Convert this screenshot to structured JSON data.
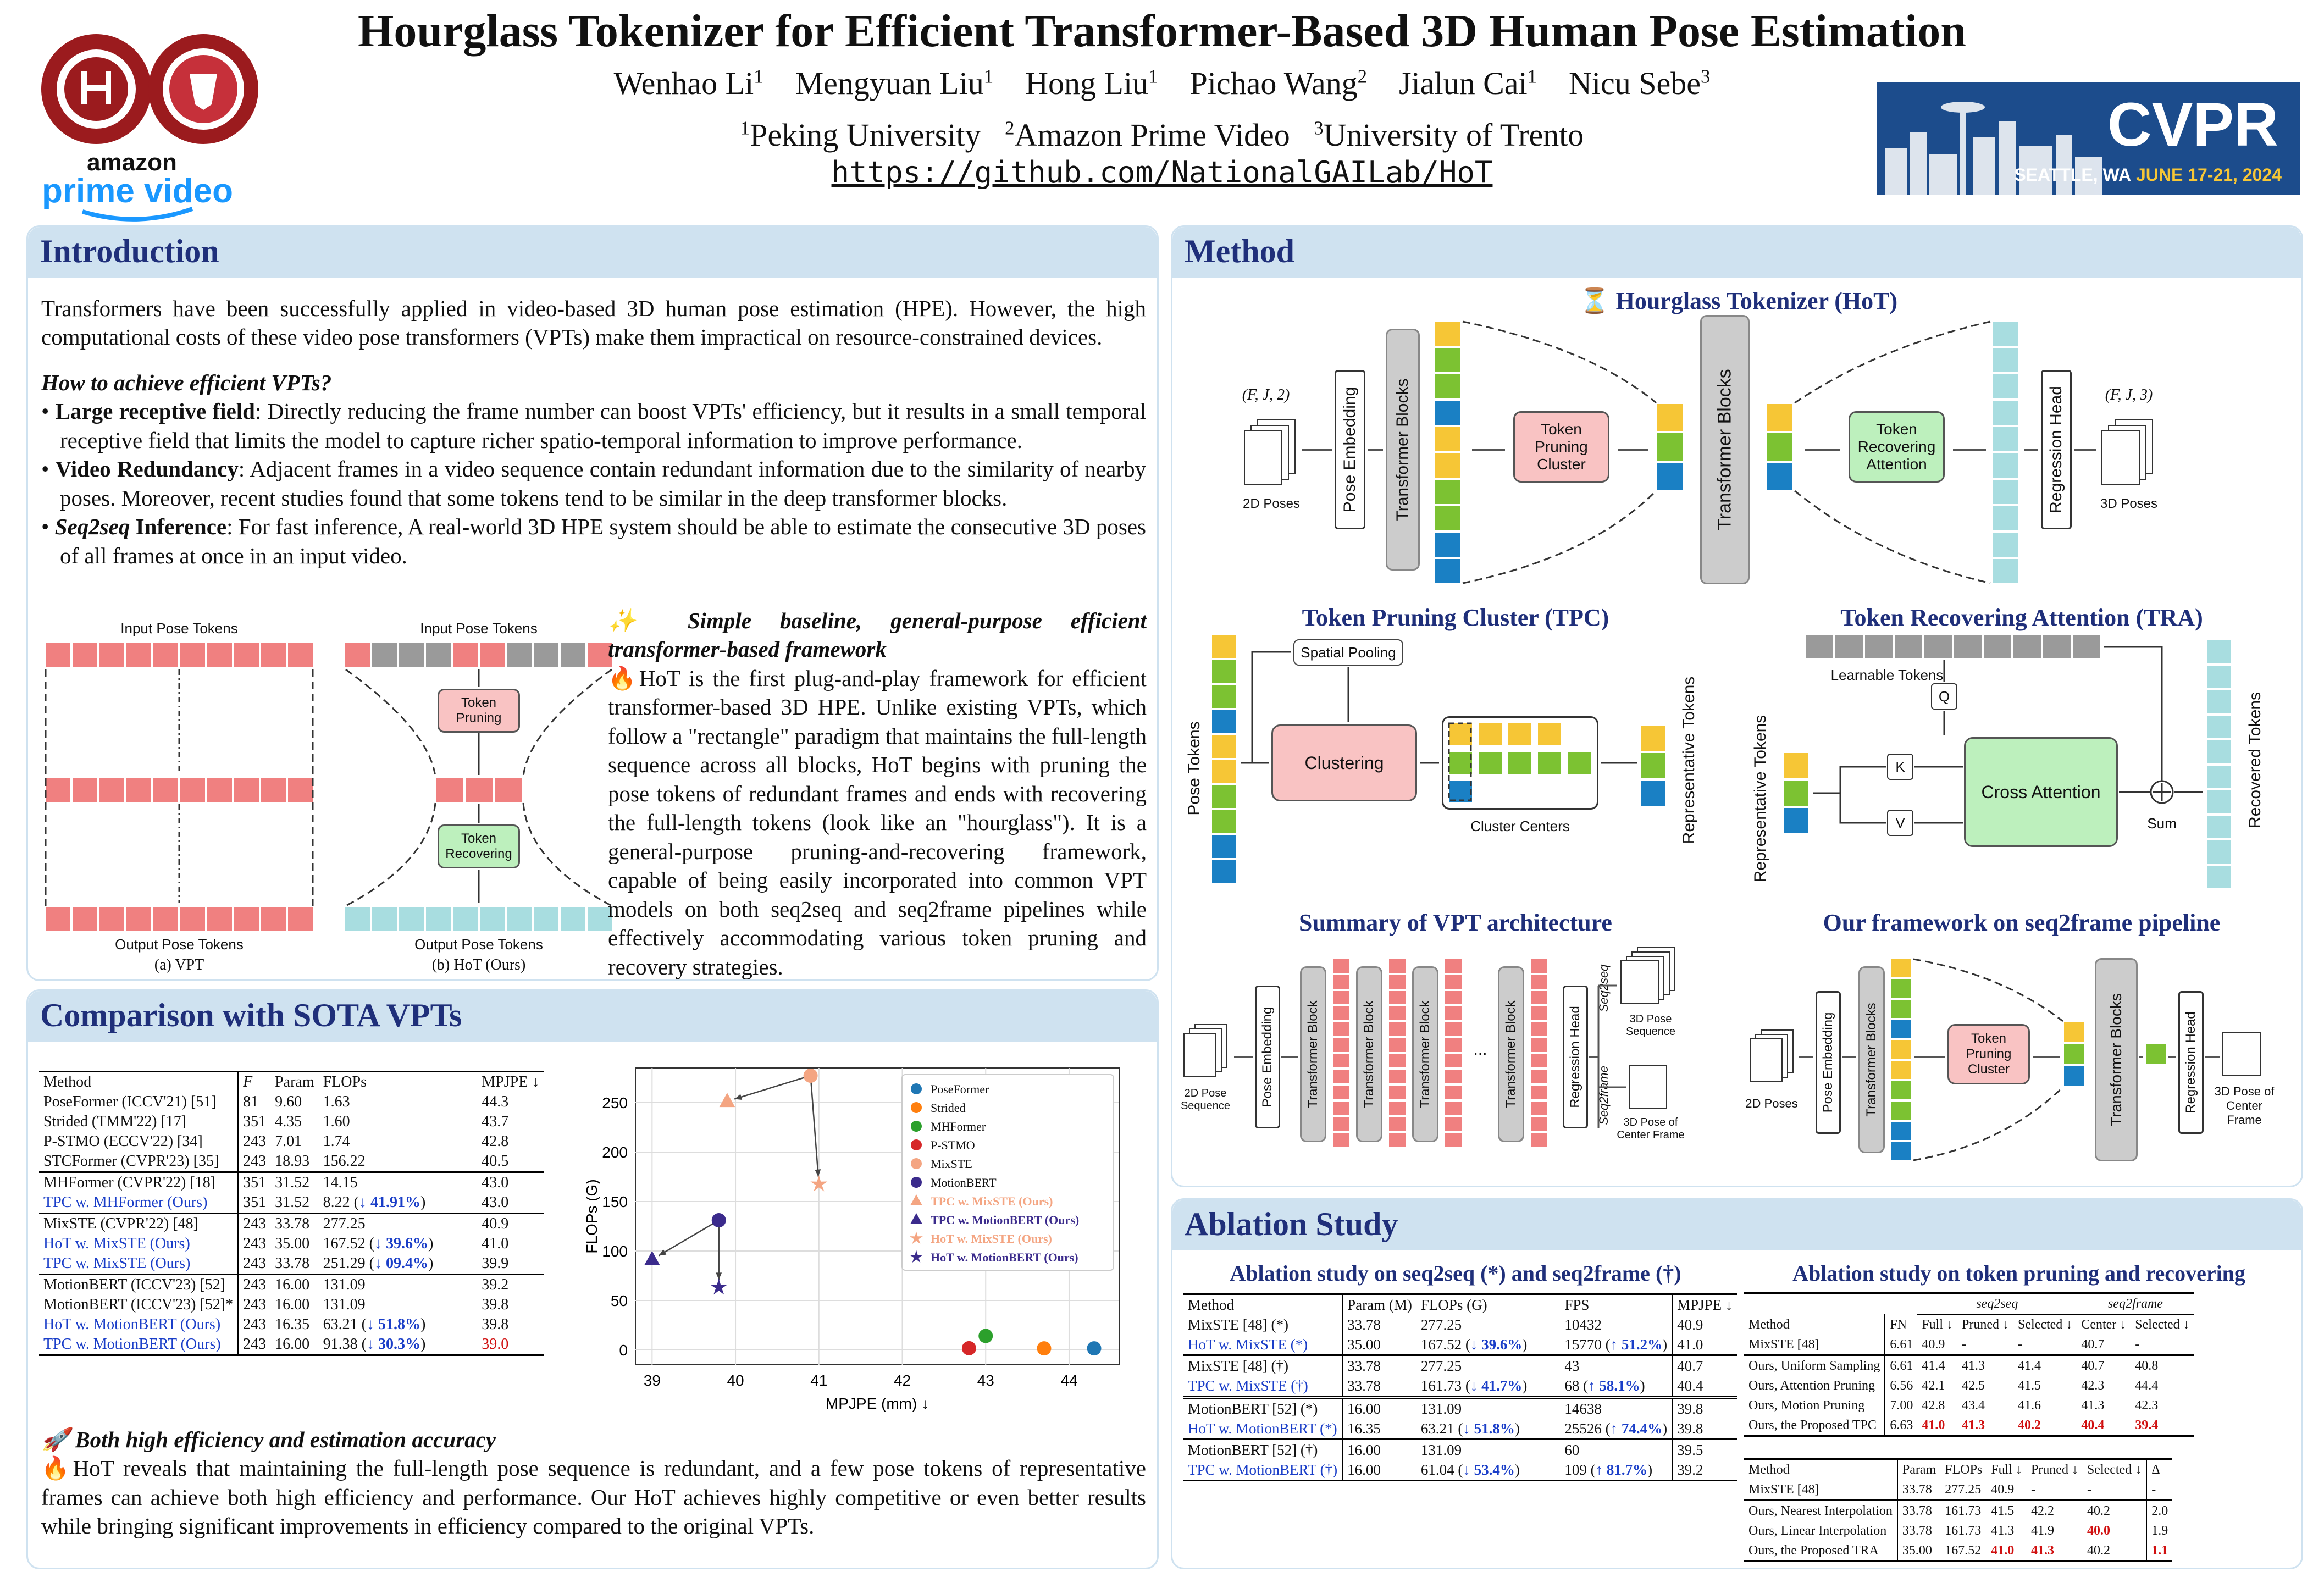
{
  "title": "Hourglass Tokenizer for Efficient Transformer-Based 3D Human Pose Estimation",
  "authors": [
    "Wenhao Li",
    "Mengyuan Liu",
    "Hong Liu",
    "Pichao Wang",
    "Jialun Cai",
    "Nicu Sebe"
  ],
  "author_sup": [
    "1",
    "1",
    "1",
    "2",
    "1",
    "3"
  ],
  "affiliations": [
    "Peking University",
    "Amazon Prime Video",
    "University of Trento"
  ],
  "url": "https://github.com/NationalGAILab/HoT",
  "logos": {
    "amazon": "amazon",
    "prime": "prime video",
    "cvpr": "CVPR",
    "cvpr_place": "SEATTLE, WA",
    "cvpr_date": "JUNE 17-21, 2024"
  },
  "intro": {
    "heading": "Introduction",
    "p1": "Transformers have been successfully applied in video-based 3D human pose estimation (HPE). However, the high computational costs of these video pose transformers (VPTs) make them impractical on resource-constrained devices.",
    "q": "How to achieve efficient VPTs?",
    "b1_head": "Large receptive field",
    "b1": ": Directly reducing the frame number can boost VPTs' efficiency, but it results in a small temporal receptive field that limits the model to capture richer spatio-temporal information to improve performance.",
    "b2_head": "Video Redundancy",
    "b2": ": Adjacent frames in a video sequence contain redundant information due to the similarity of nearby poses. Moreover, recent studies found that some tokens tend to be similar in the deep transformer blocks.",
    "b3_head": "Seq2seq",
    "b3_head2": " Inference",
    "b3": ": For fast inference, A real-world 3D HPE system should be able to estimate the consecutive 3D poses of all frames at once in an input video.",
    "fig_in": "Input Pose Tokens",
    "fig_out": "Output Pose Tokens",
    "fig_prune": "Token Pruning",
    "fig_recover": "Token Recovering",
    "cap_a": "(a) VPT",
    "cap_b": "(b) HoT (Ours)",
    "simple_head": "Simple baseline, general-purpose efficient transformer-based framework",
    "simple_text": "HoT is the first plug-and-play framework for efficient transformer-based 3D HPE. Unlike existing VPTs, which follow a \"rectangle\" paradigm that maintains the full-length sequence across all blocks, HoT begins with pruning the pose tokens of redundant frames and ends with recovering the full-length tokens (look like an \"hourglass\"). It is a general-purpose pruning-and-recovering framework, capable of being easily incorporated into common VPT models on both seq2seq and seq2frame pipelines while effectively accommodating various token pruning and recovery strategies."
  },
  "comparison": {
    "heading": "Comparison with SOTA VPTs",
    "cols": [
      "Method",
      "F",
      "Param",
      "FLOPs",
      "MPJPE ↓"
    ],
    "groups": [
      [
        [
          "PoseFormer (ICCV'21) [51]",
          "81",
          "9.60",
          "1.63",
          "44.3"
        ],
        [
          "Strided (TMM'22) [17]",
          "351",
          "4.35",
          "1.60",
          "43.7"
        ],
        [
          "P-STMO (ECCV'22) [34]",
          "243",
          "7.01",
          "1.74",
          "42.8"
        ],
        [
          "STCFormer (CVPR'23) [35]",
          "243",
          "18.93",
          "156.22",
          "40.5"
        ]
      ],
      [
        [
          "MHFormer (CVPR'22) [18]",
          "351",
          "31.52",
          "14.15",
          "43.0"
        ],
        [
          "TPC w. MHFormer (Ours)",
          "351",
          "31.52",
          "8.22 (↓ 41.91%)",
          "43.0"
        ]
      ],
      [
        [
          "MixSTE (CVPR'22) [48]",
          "243",
          "33.78",
          "277.25",
          "40.9"
        ],
        [
          "HoT w. MixSTE (Ours)",
          "243",
          "35.00",
          "167.52 (↓ 39.6%)",
          "41.0"
        ],
        [
          "TPC w. MixSTE (Ours)",
          "243",
          "33.78",
          "251.29 (↓ 09.4%)",
          "39.9"
        ]
      ],
      [
        [
          "MotionBERT (ICCV'23) [52]",
          "243",
          "16.00",
          "131.09",
          "39.2"
        ],
        [
          "MotionBERT (ICCV'23) [52]*",
          "243",
          "16.00",
          "131.09",
          "39.8"
        ],
        [
          "HoT w. MotionBERT (Ours)",
          "243",
          "16.35",
          "63.21 (↓ 51.8%)",
          "39.8"
        ],
        [
          "TPC w. MotionBERT (Ours)",
          "243",
          "16.00",
          "91.38 (↓ 30.3%)",
          "39.0"
        ]
      ]
    ],
    "both_head": "Both high efficiency and estimation accuracy",
    "both_text": "HoT reveals that maintaining the full-length pose sequence is redundant, and a few pose tokens of representative frames can achieve both high efficiency and performance. Our HoT achieves highly competitive or even better results while bringing significant improvements in efficiency compared to the original VPTs."
  },
  "chart_data": {
    "type": "scatter",
    "xlabel": "MPJPE (mm) ↓",
    "ylabel": "FLOPs (G)",
    "xlim": [
      38.8,
      44.6
    ],
    "ylim": [
      -15,
      285
    ],
    "xticks": [
      39,
      40,
      41,
      42,
      43,
      44
    ],
    "yticks": [
      0,
      50,
      100,
      150,
      200,
      250
    ],
    "grid": true,
    "legend": "top-right",
    "series": [
      {
        "name": "PoseFormer",
        "marker": "circle",
        "color": "#1f77b4",
        "x": [
          44.3
        ],
        "y": [
          1.63
        ]
      },
      {
        "name": "Strided",
        "marker": "circle",
        "color": "#ff7f0e",
        "x": [
          43.7
        ],
        "y": [
          1.6
        ]
      },
      {
        "name": "MHFormer",
        "marker": "circle",
        "color": "#2ca02c",
        "x": [
          43.0
        ],
        "y": [
          14.15
        ]
      },
      {
        "name": "P-STMO",
        "marker": "circle",
        "color": "#d62728",
        "x": [
          42.8
        ],
        "y": [
          1.74
        ]
      },
      {
        "name": "MixSTE",
        "marker": "circle",
        "color": "#f4a582",
        "x": [
          40.9
        ],
        "y": [
          277.25
        ]
      },
      {
        "name": "MotionBERT",
        "marker": "circle",
        "color": "#3b2b8c",
        "x": [
          39.8
        ],
        "y": [
          131.09
        ]
      },
      {
        "name": "TPC w. MixSTE (Ours)",
        "marker": "triangle",
        "color": "#f4a582",
        "x": [
          39.9
        ],
        "y": [
          251.29
        ]
      },
      {
        "name": "TPC w. MotionBERT (Ours)",
        "marker": "triangle",
        "color": "#3b2b8c",
        "x": [
          39.0
        ],
        "y": [
          91.38
        ]
      },
      {
        "name": "HoT w. MixSTE (Ours)",
        "marker": "star",
        "color": "#f4a582",
        "x": [
          41.0
        ],
        "y": [
          167.52
        ]
      },
      {
        "name": "HoT w. MotionBERT (Ours)",
        "marker": "star",
        "color": "#3b2b8c",
        "x": [
          39.8
        ],
        "y": [
          63.21
        ]
      }
    ]
  },
  "method": {
    "heading": "Method",
    "hot_title": "Hourglass Tokenizer (HoT)",
    "in_shape": "(F, J, 2)",
    "out_shape": "(F, J, 3)",
    "poses2d": "2D Poses",
    "poses3d": "3D Poses",
    "pose_emb": "Pose Embedding",
    "tblocks": "Transformer Blocks",
    "tpc_box": "Token Pruning Cluster",
    "tra_box": "Token Recovering Attention",
    "reg_head": "Regression Head",
    "tpc_title": "Token Pruning Cluster (TPC)",
    "tra_title": "Token Recovering Attention (TRA)",
    "spatial_pool": "Spatial Pooling",
    "clustering": "Clustering",
    "cluster_centers": "Cluster Centers",
    "pose_tokens": "Pose Tokens",
    "rep_tokens": "Representative Tokens",
    "learnable": "Learnable Tokens",
    "q": "Q",
    "k": "K",
    "v": "V",
    "cross_attn": "Cross Attention",
    "sum": "Sum",
    "recovered": "Recovered Tokens",
    "summary_title": "Summary of VPT architecture",
    "seq2frame_title": "Our framework on seq2frame pipeline",
    "seq_2d": "2D Pose Sequence",
    "tblock": "Transformer Block",
    "seq2seq": "Seq2seq",
    "seq2frame": "Seq2frame",
    "seq_3d": "3D Pose Sequence",
    "center_3d": "3D Pose of Center Frame",
    "dots": "..."
  },
  "ablation": {
    "heading": "Ablation Study",
    "t1_title": "Ablation study on seq2seq (*) and seq2frame (†)",
    "t1_cols": [
      "Method",
      "Param (M)",
      "FLOPs (G)",
      "FPS",
      "MPJPE ↓"
    ],
    "t1_groups": [
      [
        [
          "MixSTE [48] (*)",
          "33.78",
          "277.25",
          "10432",
          "40.9"
        ],
        [
          "HoT w. MixSTE (*)",
          "35.00",
          "167.52 (↓ 39.6%)",
          "15770 (↑ 51.2%)",
          "41.0"
        ]
      ],
      [
        [
          "MixSTE [48] (†)",
          "33.78",
          "277.25",
          "43",
          "40.7"
        ],
        [
          "TPC w. MixSTE (†)",
          "33.78",
          "161.73 (↓ 41.7%)",
          "68 (↑ 58.1%)",
          "40.4"
        ]
      ],
      [
        [
          "MotionBERT [52] (*)",
          "16.00",
          "131.09",
          "14638",
          "39.8"
        ],
        [
          "HoT w. MotionBERT (*)",
          "16.35",
          "63.21 (↓ 51.8%)",
          "25526 (↑ 74.4%)",
          "39.8"
        ]
      ],
      [
        [
          "MotionBERT [52] (†)",
          "16.00",
          "131.09",
          "60",
          "39.5"
        ],
        [
          "TPC w. MotionBERT (†)",
          "16.00",
          "61.04 (↓ 53.4%)",
          "109 (↑ 81.7%)",
          "39.2"
        ]
      ]
    ],
    "t2_title": "Ablation study on token pruning and recovering",
    "t2_span1": "seq2seq",
    "t2_span2": "seq2frame",
    "t2_cols": [
      "Method",
      "FN",
      "Full ↓",
      "Pruned ↓",
      "Selected ↓",
      "Center ↓",
      "Selected ↓"
    ],
    "t2_rows": [
      [
        "MixSTE [48]",
        "6.61",
        "40.9",
        "-",
        "-",
        "40.7",
        "-"
      ]
    ],
    "t2_rows2": [
      [
        "Ours, Uniform Sampling",
        "6.61",
        "41.4",
        "41.3",
        "41.4",
        "40.7",
        "40.8"
      ],
      [
        "Ours, Attention Pruning",
        "6.56",
        "42.1",
        "42.5",
        "41.5",
        "42.3",
        "44.4"
      ],
      [
        "Ours, Motion Pruning",
        "7.00",
        "42.8",
        "43.4",
        "41.6",
        "41.3",
        "42.3"
      ],
      [
        "Ours, the Proposed TPC",
        "6.63",
        "41.0",
        "41.3",
        "40.2",
        "40.4",
        "39.4"
      ]
    ],
    "t3_cols": [
      "Method",
      "Param",
      "FLOPs",
      "Full ↓",
      "Pruned ↓",
      "Selected ↓",
      "Δ"
    ],
    "t3_rows": [
      [
        "MixSTE [48]",
        "33.78",
        "277.25",
        "40.9",
        "-",
        "-",
        "-"
      ]
    ],
    "t3_rows2": [
      [
        "Ours, Nearest Interpolation",
        "33.78",
        "161.73",
        "41.5",
        "42.2",
        "40.2",
        "2.0"
      ],
      [
        "Ours, Linear Interpolation",
        "33.78",
        "161.73",
        "41.3",
        "41.9",
        "40.0",
        "1.9"
      ],
      [
        "Ours, the Proposed TRA",
        "35.00",
        "167.52",
        "41.0",
        "41.3",
        "40.2",
        "1.1"
      ]
    ]
  },
  "colors": {
    "panel": "#cfe2f0",
    "heading": "#1f2f7a",
    "pink": "#f08080",
    "teal": "#a8dde0",
    "yellow": "#f6c636",
    "green": "#7cc232",
    "blue": "#1a80c4",
    "gray": "#9a9a9a",
    "ours": "#1a3ec8",
    "best": "#d01010"
  }
}
